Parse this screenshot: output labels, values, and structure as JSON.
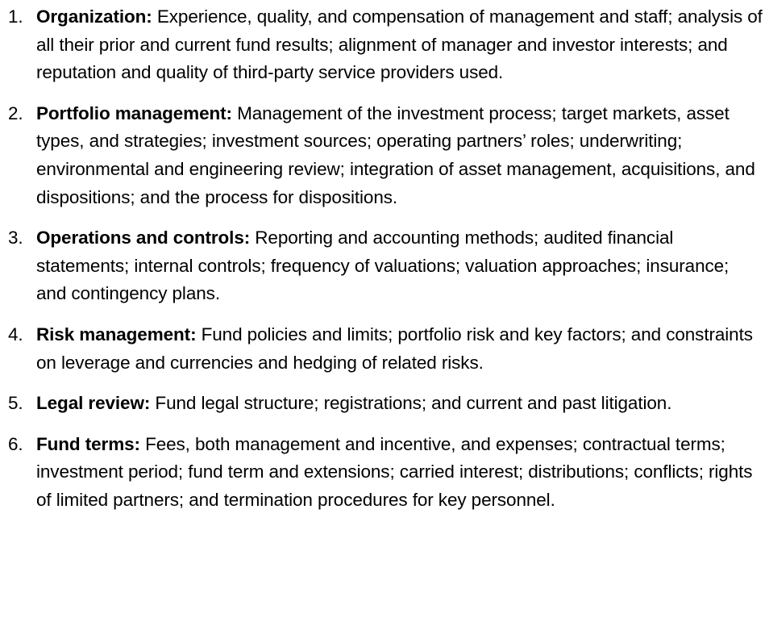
{
  "items": [
    {
      "number": "1.",
      "heading": "Organization:",
      "text": "Experience, quality, and compensation of management and staff; analysis of all their prior and current fund results; alignment of manager and investor interests; and reputation and quality of third-party service providers used."
    },
    {
      "number": "2.",
      "heading": "Portfolio management:",
      "text": "Management of the investment process; target markets, asset types, and strategies; investment sources; operating partners’ roles; underwriting; environmental and engineering review; integration of asset management, acquisitions, and dispositions; and the process for dispositions."
    },
    {
      "number": "3.",
      "heading": "Operations and controls:",
      "text": "Reporting and accounting methods; audited financial statements; internal controls; frequency of valuations; valuation approaches; insurance; and contingency plans."
    },
    {
      "number": "4.",
      "heading": "Risk management:",
      "text": "Fund policies and limits; portfolio risk and key factors; and constraints on leverage and currencies and hedging of related risks."
    },
    {
      "number": "5.",
      "heading": "Legal review:",
      "text": "Fund legal structure; registrations; and current and past litigation."
    },
    {
      "number": "6.",
      "heading": "Fund terms:",
      "text": "Fees, both management and incentive, and expenses; contractual terms; investment period; fund term and extensions; carried interest; distributions; conflicts; rights of limited partners; and termination procedures for key personnel."
    }
  ]
}
